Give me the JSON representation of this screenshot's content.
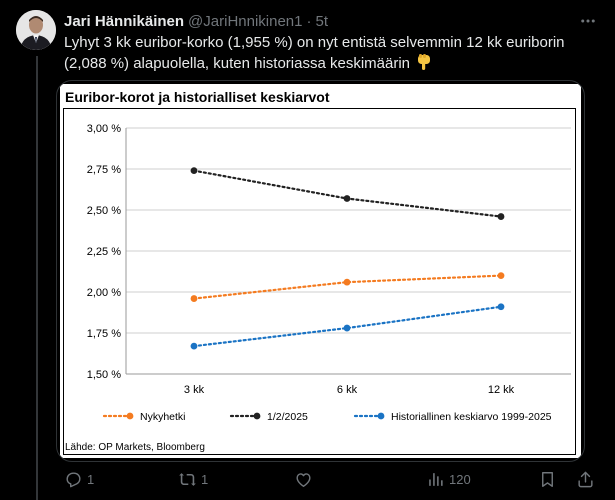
{
  "tweet": {
    "author_name": "Jari Hännikäinen",
    "author_handle": "@JariHnnikinen1",
    "separator": "·",
    "time": "5t",
    "text": "Lyhyt 3 kk euribor-korko (1,955 %) on nyt entistä selvemmin 12 kk euriborin (2,088 %) alapuolella, kuten historiassa keskimäärin",
    "emoji": "backhand-index-pointing-down"
  },
  "chart_image": {
    "source": "Lähde: OP Markets, Bloomberg"
  },
  "chart_data": {
    "type": "line",
    "title": "Euribor-korot ja historialliset keskiarvot",
    "categories": [
      "3 kk",
      "6 kk",
      "12 kk"
    ],
    "y_ticks": [
      "1,50 %",
      "1,75 %",
      "2,00 %",
      "2,25 %",
      "2,50 %",
      "2,75 %",
      "3,00 %"
    ],
    "ylim": [
      1.5,
      3.0
    ],
    "grid": true,
    "legend_position": "bottom",
    "series": [
      {
        "name": "Nykyhetki",
        "values": [
          1.96,
          2.06,
          2.1
        ],
        "color": "#f47b20"
      },
      {
        "name": "1/2/2025",
        "values": [
          2.74,
          2.57,
          2.46
        ],
        "color": "#222222"
      },
      {
        "name": "Historiallinen keskiarvo 1999-2025",
        "values": [
          1.67,
          1.78,
          1.91
        ],
        "color": "#1a73c4"
      }
    ]
  },
  "actions": {
    "replies": "1",
    "retweets": "1",
    "likes": "",
    "views": "120"
  },
  "colors": {
    "background": "#000000",
    "text": "#e7e9ea",
    "muted": "#71767b",
    "border": "#2f3336"
  }
}
